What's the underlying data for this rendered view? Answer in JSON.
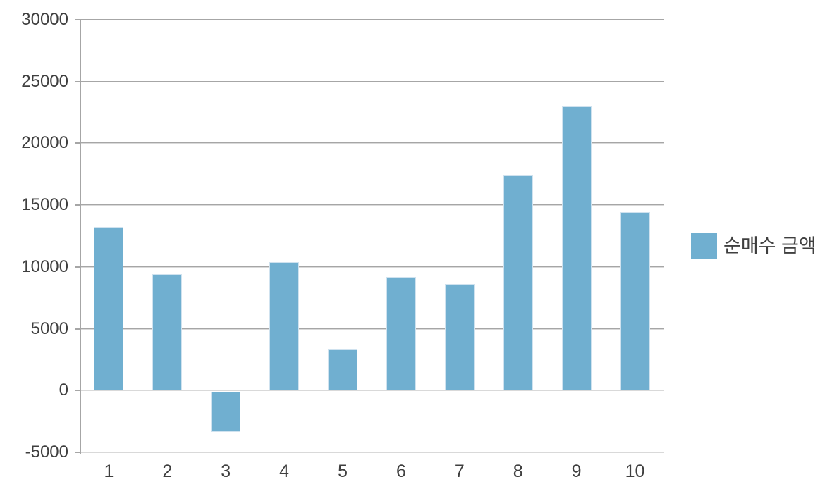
{
  "chart_data": {
    "type": "bar",
    "title": "",
    "xlabel": "",
    "ylabel": "",
    "categories": [
      "1",
      "2",
      "3",
      "4",
      "5",
      "6",
      "7",
      "8",
      "9",
      "10"
    ],
    "series": [
      {
        "name": "순매수 금액",
        "values": [
          13250,
          9450,
          -3350,
          10400,
          3300,
          9200,
          8600,
          17400,
          23000,
          14450
        ]
      }
    ],
    "ylim": [
      -5000,
      30000
    ],
    "ytick_step": 5000,
    "ytick_labels": [
      "30000",
      "25000",
      "20000",
      "15000",
      "10000",
      "5000",
      "0",
      "-5000"
    ],
    "grid": true,
    "legend_position": "right-middle"
  },
  "legend": {
    "label": "순매수 금액"
  },
  "colors": {
    "bar_fill": "#70afd0",
    "bar_edge": "#cfe2ef",
    "gridline": "#a6a6a6",
    "text": "#3f3f3f",
    "background": "#ffffff"
  }
}
